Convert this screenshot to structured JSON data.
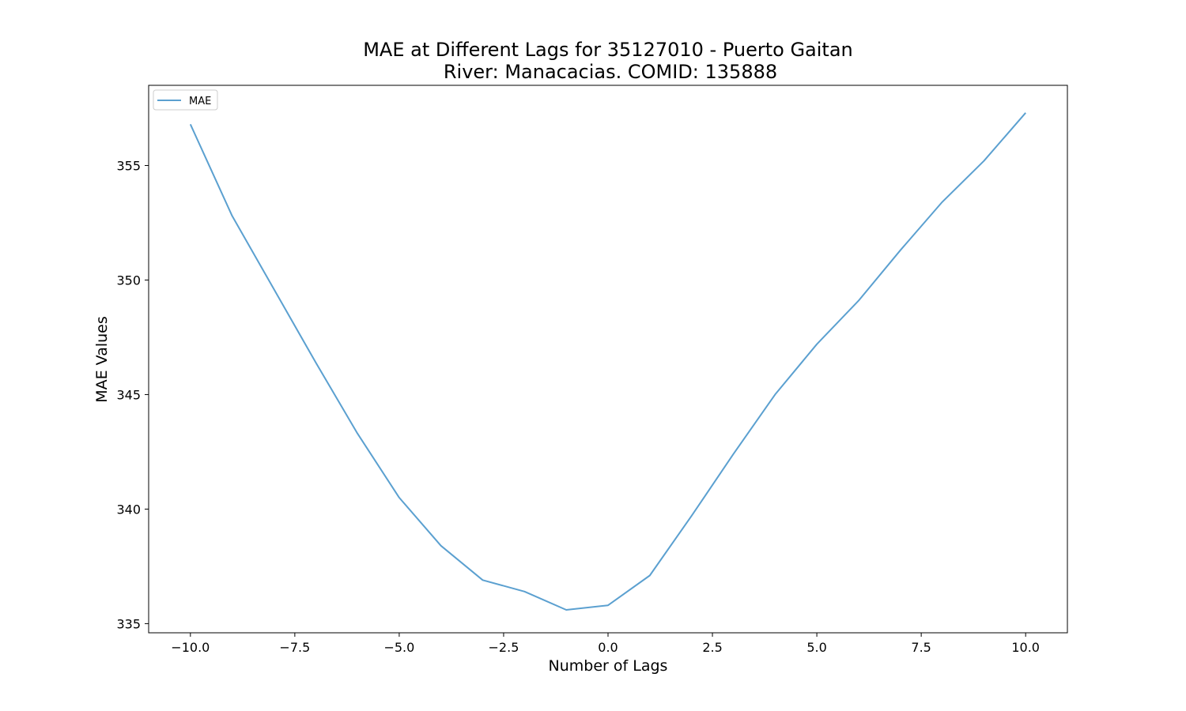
{
  "chart_data": {
    "type": "line",
    "title_line1": "MAE at Different Lags for 35127010 - Puerto Gaitan",
    "title_line2": "River: Manacacias. COMID: 135888",
    "xlabel": "Number of Lags",
    "ylabel": "MAE Values",
    "xlim": [
      -11,
      11
    ],
    "ylim": [
      334.6,
      358.5
    ],
    "xticks": [
      -10,
      -7.5,
      -5,
      -2.5,
      0,
      2.5,
      5,
      7.5,
      10
    ],
    "xtick_labels": [
      "−10.0",
      "−7.5",
      "−5.0",
      "−2.5",
      "0.0",
      "2.5",
      "5.0",
      "7.5",
      "10.0"
    ],
    "yticks": [
      335,
      340,
      345,
      350,
      355
    ],
    "ytick_labels": [
      "335",
      "340",
      "345",
      "350",
      "355"
    ],
    "grid": false,
    "legend_position": "upper-left",
    "series": [
      {
        "name": "MAE",
        "color": "#5ba0d0",
        "x": [
          -10,
          -9,
          -8,
          -7,
          -6,
          -5,
          -4,
          -3,
          -2,
          -1,
          0,
          1,
          2,
          3,
          4,
          5,
          6,
          7,
          8,
          9,
          10
        ],
        "y": [
          356.8,
          352.8,
          349.6,
          346.4,
          343.3,
          340.5,
          338.4,
          336.9,
          336.4,
          335.6,
          335.8,
          337.1,
          339.7,
          342.4,
          345.0,
          347.2,
          349.1,
          351.3,
          353.4,
          355.2,
          357.3
        ]
      }
    ]
  }
}
